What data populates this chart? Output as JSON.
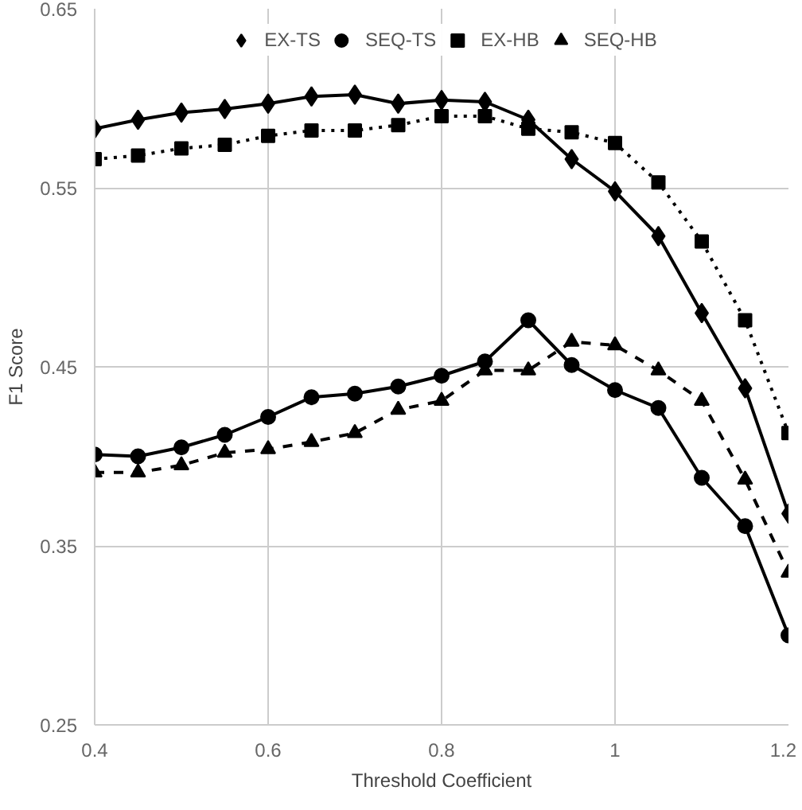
{
  "chart_data": {
    "type": "line",
    "xlabel": "Threshold Coefficient",
    "ylabel": "F1 Score",
    "x": [
      0.4,
      0.45,
      0.5,
      0.55,
      0.6,
      0.65,
      0.7,
      0.75,
      0.8,
      0.85,
      0.9,
      0.95,
      1,
      1.05,
      1.1,
      1.15,
      1.2
    ],
    "series": [
      {
        "name": "EX-TS",
        "color": "#000000",
        "marker": "diamond",
        "line_style": "solid",
        "values": [
          0.583,
          0.588,
          0.592,
          0.594,
          0.597,
          0.601,
          0.602,
          0.597,
          0.599,
          0.598,
          0.588,
          0.566,
          0.548,
          0.523,
          0.48,
          0.438,
          0.368
        ]
      },
      {
        "name": "SEQ-TS",
        "color": "#000000",
        "marker": "circle",
        "line_style": "solid",
        "values": [
          0.401,
          0.4,
          0.405,
          0.412,
          0.422,
          0.433,
          0.435,
          0.439,
          0.445,
          0.453,
          0.476,
          0.451,
          0.437,
          0.427,
          0.388,
          0.361,
          0.3
        ]
      },
      {
        "name": "EX-HB",
        "color": "#000000",
        "marker": "square",
        "line_style": "dotted",
        "values": [
          0.566,
          0.568,
          0.572,
          0.574,
          0.579,
          0.582,
          0.582,
          0.585,
          0.59,
          0.59,
          0.583,
          0.581,
          0.575,
          0.553,
          0.52,
          0.476,
          0.413
        ]
      },
      {
        "name": "SEQ-HB",
        "color": "#000000",
        "marker": "triangle",
        "line_style": "dashed",
        "values": [
          0.391,
          0.391,
          0.395,
          0.402,
          0.404,
          0.408,
          0.413,
          0.426,
          0.431,
          0.448,
          0.448,
          0.464,
          0.462,
          0.448,
          0.431,
          0.387,
          0.335
        ]
      }
    ],
    "xlim": [
      0.4,
      1.2
    ],
    "xticks": [
      0.4,
      0.6,
      0.8,
      1,
      1.2
    ],
    "ylim": [
      0.25,
      0.65
    ],
    "yticks": [
      0.25,
      0.35,
      0.45,
      0.55,
      0.65
    ],
    "grid": true,
    "legend": "top"
  }
}
